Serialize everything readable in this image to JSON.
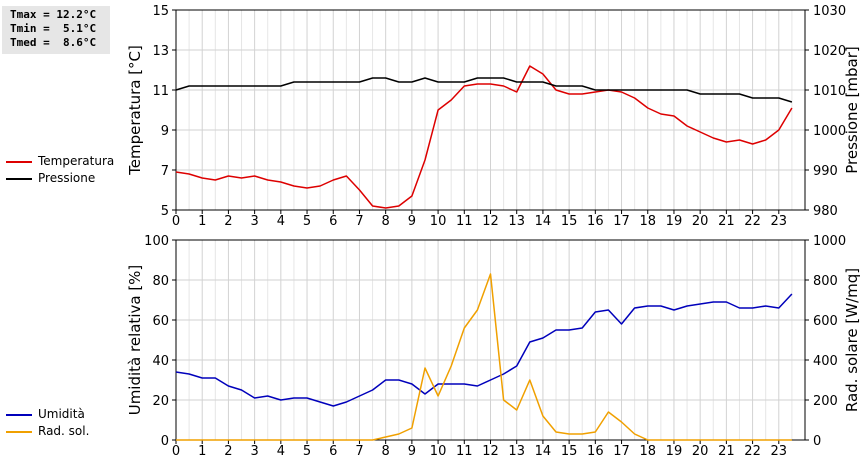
{
  "stats": {
    "lines": [
      "Tmax = 12.2°C",
      "Tmin =  5.1°C",
      "Tmed =  8.6°C"
    ]
  },
  "chart_data": [
    {
      "type": "line",
      "ylabel": "Temperatura [°C]",
      "y2label": "Pressione [mbar]",
      "ylim": [
        5,
        15
      ],
      "y2lim": [
        980,
        1030
      ],
      "yticks": [
        5,
        7,
        9,
        11,
        13,
        15
      ],
      "y2ticks": [
        980,
        990,
        1000,
        1010,
        1020,
        1030
      ],
      "xlim": [
        0,
        24
      ],
      "xticks": [
        "0",
        "1",
        "2",
        "3",
        "4",
        "5",
        "6",
        "7",
        "8",
        "9",
        "10",
        "11",
        "12",
        "13",
        "14",
        "15",
        "16",
        "17",
        "18",
        "19",
        "20",
        "21",
        "22",
        "23"
      ],
      "grid": true,
      "series": [
        {
          "name": "Temperatura",
          "axis": "left",
          "color": "#dd0000",
          "x": [
            0,
            0.5,
            1,
            1.5,
            2,
            2.5,
            3,
            3.5,
            4,
            4.5,
            5,
            5.5,
            6,
            6.5,
            7,
            7.5,
            8,
            8.5,
            9,
            9.5,
            10,
            10.5,
            11,
            11.5,
            12,
            12.5,
            13,
            13.5,
            14,
            14.5,
            15,
            15.5,
            16,
            16.5,
            17,
            17.5,
            18,
            18.5,
            19,
            19.5,
            20,
            20.5,
            21,
            21.5,
            22,
            22.5,
            23,
            23.5
          ],
          "values": [
            6.9,
            6.8,
            6.6,
            6.5,
            6.7,
            6.6,
            6.7,
            6.5,
            6.4,
            6.2,
            6.1,
            6.2,
            6.5,
            6.7,
            6.0,
            5.2,
            5.1,
            5.2,
            5.7,
            7.5,
            10.0,
            10.5,
            11.2,
            11.3,
            11.3,
            11.2,
            10.9,
            12.2,
            11.8,
            11.0,
            10.8,
            10.8,
            10.9,
            11.0,
            10.9,
            10.6,
            10.1,
            9.8,
            9.7,
            9.2,
            8.9,
            8.6,
            8.4,
            8.5,
            8.3,
            8.5,
            9.0,
            10.1
          ]
        },
        {
          "name": "Pressione",
          "axis": "right",
          "color": "#000000",
          "x": [
            0,
            0.5,
            1,
            1.5,
            2,
            2.5,
            3,
            3.5,
            4,
            4.5,
            5,
            5.5,
            6,
            6.5,
            7,
            7.5,
            8,
            8.5,
            9,
            9.5,
            10,
            10.5,
            11,
            11.5,
            12,
            12.5,
            13,
            13.5,
            14,
            14.5,
            15,
            15.5,
            16,
            16.5,
            17,
            17.5,
            18,
            18.5,
            19,
            19.5,
            20,
            20.5,
            21,
            21.5,
            22,
            22.5,
            23,
            23.5
          ],
          "values": [
            1010,
            1011,
            1011,
            1011,
            1011,
            1011,
            1011,
            1011,
            1011,
            1012,
            1012,
            1012,
            1012,
            1012,
            1012,
            1013,
            1013,
            1012,
            1012,
            1013,
            1012,
            1012,
            1012,
            1013,
            1013,
            1013,
            1012,
            1012,
            1012,
            1011,
            1011,
            1011,
            1010,
            1010,
            1010,
            1010,
            1010,
            1010,
            1010,
            1010,
            1009,
            1009,
            1009,
            1009,
            1008,
            1008,
            1008,
            1007
          ]
        }
      ]
    },
    {
      "type": "line",
      "ylabel": "Umidità relativa [%]",
      "y2label": "Rad. solare [W/mq]",
      "ylim": [
        0,
        100
      ],
      "y2lim": [
        0,
        1000
      ],
      "yticks": [
        0,
        20,
        40,
        60,
        80,
        100
      ],
      "y2ticks": [
        0,
        200,
        400,
        600,
        800,
        1000
      ],
      "xlim": [
        0,
        24
      ],
      "xticks": [
        "0",
        "1",
        "2",
        "3",
        "4",
        "5",
        "6",
        "7",
        "8",
        "9",
        "10",
        "11",
        "12",
        "13",
        "14",
        "15",
        "16",
        "17",
        "18",
        "19",
        "20",
        "21",
        "22",
        "23"
      ],
      "grid": true,
      "series": [
        {
          "name": "Umidità",
          "axis": "left",
          "color": "#0000bb",
          "x": [
            0,
            0.5,
            1,
            1.5,
            2,
            2.5,
            3,
            3.5,
            4,
            4.5,
            5,
            5.5,
            6,
            6.5,
            7,
            7.5,
            8,
            8.5,
            9,
            9.5,
            10,
            10.5,
            11,
            11.5,
            12,
            12.5,
            13,
            13.5,
            14,
            14.5,
            15,
            15.5,
            16,
            16.5,
            17,
            17.5,
            18,
            18.5,
            19,
            19.5,
            20,
            20.5,
            21,
            21.5,
            22,
            22.5,
            23,
            23.5
          ],
          "values": [
            34,
            33,
            31,
            31,
            27,
            25,
            21,
            22,
            20,
            21,
            21,
            19,
            17,
            19,
            22,
            25,
            30,
            30,
            28,
            23,
            28,
            28,
            28,
            27,
            30,
            33,
            37,
            49,
            51,
            55,
            55,
            56,
            64,
            65,
            58,
            66,
            67,
            67,
            65,
            67,
            68,
            69,
            69,
            66,
            66,
            67,
            66,
            73
          ]
        },
        {
          "name": "Rad. sol.",
          "axis": "right",
          "color": "#f0a000",
          "x": [
            0,
            0.5,
            1,
            1.5,
            2,
            2.5,
            3,
            3.5,
            4,
            4.5,
            5,
            5.5,
            6,
            6.5,
            7,
            7.5,
            8,
            8.5,
            9,
            9.5,
            10,
            10.5,
            11,
            11.5,
            12,
            12.5,
            13,
            13.5,
            14,
            14.5,
            15,
            15.5,
            16,
            16.5,
            17,
            17.5,
            18,
            18.5,
            19,
            19.5,
            20,
            20.5,
            21,
            21.5,
            22,
            22.5,
            23,
            23.5
          ],
          "values": [
            0,
            0,
            0,
            0,
            0,
            0,
            0,
            0,
            0,
            0,
            0,
            0,
            0,
            0,
            0,
            0,
            15,
            30,
            60,
            360,
            220,
            370,
            560,
            650,
            830,
            200,
            150,
            300,
            120,
            40,
            30,
            30,
            40,
            140,
            90,
            30,
            0,
            0,
            0,
            0,
            0,
            0,
            0,
            0,
            0,
            0,
            0,
            0
          ]
        }
      ]
    }
  ]
}
